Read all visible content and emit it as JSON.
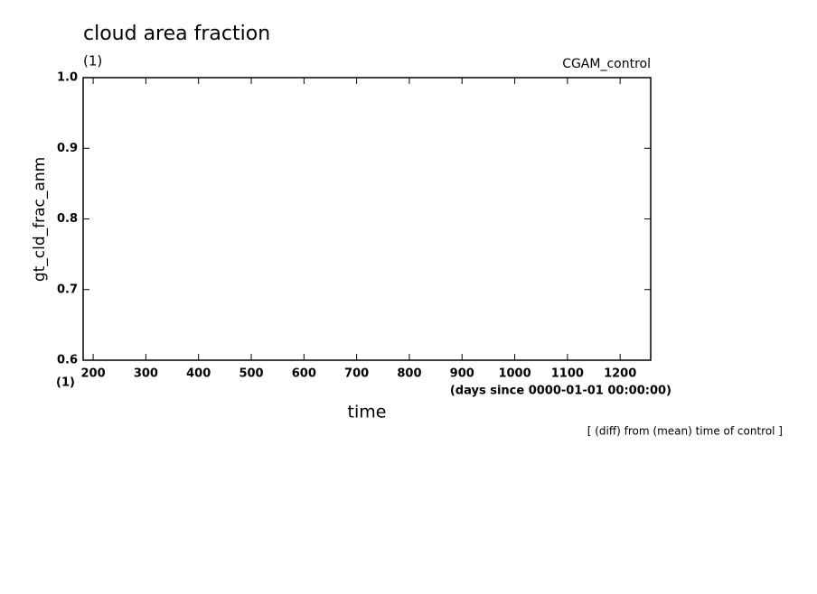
{
  "chart_data": {
    "type": "line",
    "title": "cloud area fraction",
    "y_units": "(1)",
    "subtitle_right": "CGAM_control",
    "y_label": "gt_cld_frac_anm",
    "x_units_left": "(1)",
    "x_units": "(days since 0000-01-01 00:00:00)",
    "x_label": "time",
    "note": "[ (diff) from (mean) time of control ]",
    "series": [],
    "xlim": [
      181,
      1258
    ],
    "xticks": [
      200,
      300,
      400,
      500,
      600,
      700,
      800,
      900,
      1000,
      1100,
      1200
    ],
    "ylim": [
      0.6,
      1
    ],
    "yticks": [
      0.6,
      0.7,
      0.8,
      0.9,
      {
        "value": 1,
        "label": "1.0"
      }
    ],
    "grid": false
  }
}
